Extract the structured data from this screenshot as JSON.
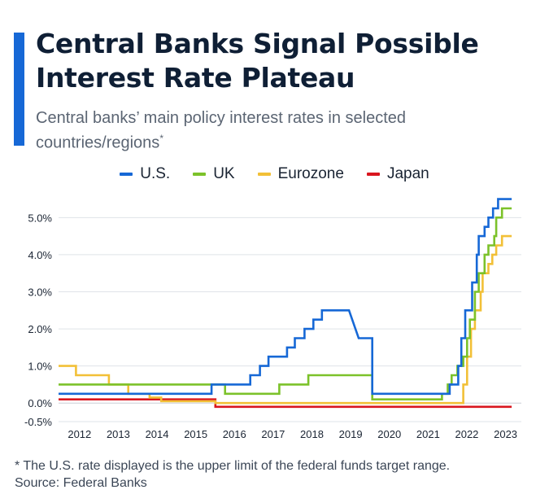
{
  "title": "Central Banks Signal Possible Interest Rate Plateau",
  "subtitle": "Central banks’ main policy interest rates in selected countries/regions",
  "subtitle_marker": "*",
  "footnote": "* The U.S. rate displayed is the upper limit of the federal funds target range.",
  "source": "Source: Federal Banks",
  "chart_data": {
    "type": "line",
    "ylim": [
      -0.5,
      5.6
    ],
    "xlim": [
      2011.5,
      2023.45
    ],
    "yticks": [
      -0.5,
      0.0,
      1.0,
      2.0,
      3.0,
      4.0,
      5.0
    ],
    "ytick_labels": [
      "-0.5%",
      "0.0%",
      "1.0%",
      "2.0%",
      "3.0%",
      "4.0%",
      "5.0%"
    ],
    "xticks": [
      2012,
      2013,
      2014,
      2015,
      2016,
      2017,
      2018,
      2019,
      2020,
      2021,
      2022,
      2023
    ],
    "xtick_labels": [
      "2012",
      "2013",
      "2014",
      "2015",
      "2016",
      "2017",
      "2018",
      "2019",
      "2020",
      "2021",
      "2022",
      "2023"
    ],
    "grid": "horizontal",
    "legend_position": "top",
    "step": true,
    "series": [
      {
        "name": "U.S.",
        "color": "#1668d6",
        "points": [
          [
            2011.5,
            0.25
          ],
          [
            2015.45,
            0.25
          ],
          [
            2015.45,
            0.5
          ],
          [
            2016.45,
            0.5
          ],
          [
            2016.45,
            0.75
          ],
          [
            2016.7,
            0.75
          ],
          [
            2016.7,
            1.0
          ],
          [
            2016.92,
            1.0
          ],
          [
            2016.92,
            1.25
          ],
          [
            2017.4,
            1.25
          ],
          [
            2017.4,
            1.5
          ],
          [
            2017.6,
            1.5
          ],
          [
            2017.6,
            1.75
          ],
          [
            2017.85,
            1.75
          ],
          [
            2017.85,
            2.0
          ],
          [
            2018.08,
            2.0
          ],
          [
            2018.08,
            2.25
          ],
          [
            2018.3,
            2.25
          ],
          [
            2018.3,
            2.5
          ],
          [
            2019.0,
            2.5
          ],
          [
            2019.25,
            1.75
          ],
          [
            2019.6,
            1.75
          ],
          [
            2019.6,
            0.25
          ],
          [
            2021.6,
            0.25
          ],
          [
            2021.6,
            0.5
          ],
          [
            2021.82,
            0.5
          ],
          [
            2021.82,
            1.0
          ],
          [
            2021.9,
            1.0
          ],
          [
            2021.9,
            1.75
          ],
          [
            2022.0,
            1.75
          ],
          [
            2022.0,
            2.5
          ],
          [
            2022.18,
            2.5
          ],
          [
            2022.18,
            3.25
          ],
          [
            2022.3,
            3.25
          ],
          [
            2022.3,
            4.0
          ],
          [
            2022.35,
            4.0
          ],
          [
            2022.35,
            4.5
          ],
          [
            2022.5,
            4.5
          ],
          [
            2022.5,
            4.75
          ],
          [
            2022.6,
            4.75
          ],
          [
            2022.6,
            5.0
          ],
          [
            2022.72,
            5.0
          ],
          [
            2022.72,
            5.25
          ],
          [
            2022.85,
            5.25
          ],
          [
            2022.85,
            5.5
          ],
          [
            2023.2,
            5.5
          ]
        ]
      },
      {
        "name": "UK",
        "color": "#7cc22a",
        "points": [
          [
            2011.5,
            0.5
          ],
          [
            2015.8,
            0.5
          ],
          [
            2015.8,
            0.25
          ],
          [
            2017.2,
            0.25
          ],
          [
            2017.2,
            0.5
          ],
          [
            2017.95,
            0.5
          ],
          [
            2017.95,
            0.75
          ],
          [
            2019.6,
            0.75
          ],
          [
            2019.6,
            0.1
          ],
          [
            2021.4,
            0.1
          ],
          [
            2021.4,
            0.25
          ],
          [
            2021.55,
            0.25
          ],
          [
            2021.55,
            0.5
          ],
          [
            2021.65,
            0.5
          ],
          [
            2021.65,
            0.75
          ],
          [
            2021.8,
            0.75
          ],
          [
            2021.8,
            1.0
          ],
          [
            2021.95,
            1.0
          ],
          [
            2021.95,
            1.25
          ],
          [
            2022.05,
            1.25
          ],
          [
            2022.05,
            1.75
          ],
          [
            2022.12,
            1.75
          ],
          [
            2022.12,
            2.25
          ],
          [
            2022.25,
            2.25
          ],
          [
            2022.25,
            3.0
          ],
          [
            2022.35,
            3.0
          ],
          [
            2022.35,
            3.5
          ],
          [
            2022.5,
            3.5
          ],
          [
            2022.5,
            4.0
          ],
          [
            2022.6,
            4.0
          ],
          [
            2022.6,
            4.25
          ],
          [
            2022.75,
            4.25
          ],
          [
            2022.75,
            4.5
          ],
          [
            2022.8,
            4.5
          ],
          [
            2022.8,
            5.0
          ],
          [
            2022.95,
            5.0
          ],
          [
            2022.95,
            5.25
          ],
          [
            2023.2,
            5.25
          ]
        ]
      },
      {
        "name": "Eurozone",
        "color": "#f2c037",
        "points": [
          [
            2011.5,
            1.0
          ],
          [
            2011.95,
            1.0
          ],
          [
            2011.95,
            0.75
          ],
          [
            2012.8,
            0.75
          ],
          [
            2012.8,
            0.5
          ],
          [
            2013.3,
            0.5
          ],
          [
            2013.3,
            0.25
          ],
          [
            2013.85,
            0.25
          ],
          [
            2013.85,
            0.15
          ],
          [
            2014.15,
            0.15
          ],
          [
            2014.15,
            0.05
          ],
          [
            2015.55,
            0.05
          ],
          [
            2015.55,
            0.0
          ],
          [
            2021.95,
            0.0
          ],
          [
            2021.95,
            0.5
          ],
          [
            2022.05,
            0.5
          ],
          [
            2022.05,
            1.25
          ],
          [
            2022.15,
            1.25
          ],
          [
            2022.15,
            2.0
          ],
          [
            2022.25,
            2.0
          ],
          [
            2022.25,
            2.5
          ],
          [
            2022.4,
            2.5
          ],
          [
            2022.4,
            3.0
          ],
          [
            2022.45,
            3.0
          ],
          [
            2022.45,
            3.5
          ],
          [
            2022.6,
            3.5
          ],
          [
            2022.6,
            3.75
          ],
          [
            2022.7,
            3.75
          ],
          [
            2022.7,
            4.0
          ],
          [
            2022.8,
            4.0
          ],
          [
            2022.8,
            4.25
          ],
          [
            2022.95,
            4.25
          ],
          [
            2022.95,
            4.5
          ],
          [
            2023.2,
            4.5
          ]
        ]
      },
      {
        "name": "Japan",
        "color": "#d9161f",
        "points": [
          [
            2011.5,
            0.1
          ],
          [
            2015.55,
            0.1
          ],
          [
            2015.55,
            -0.1
          ],
          [
            2023.2,
            -0.1
          ]
        ]
      }
    ]
  }
}
